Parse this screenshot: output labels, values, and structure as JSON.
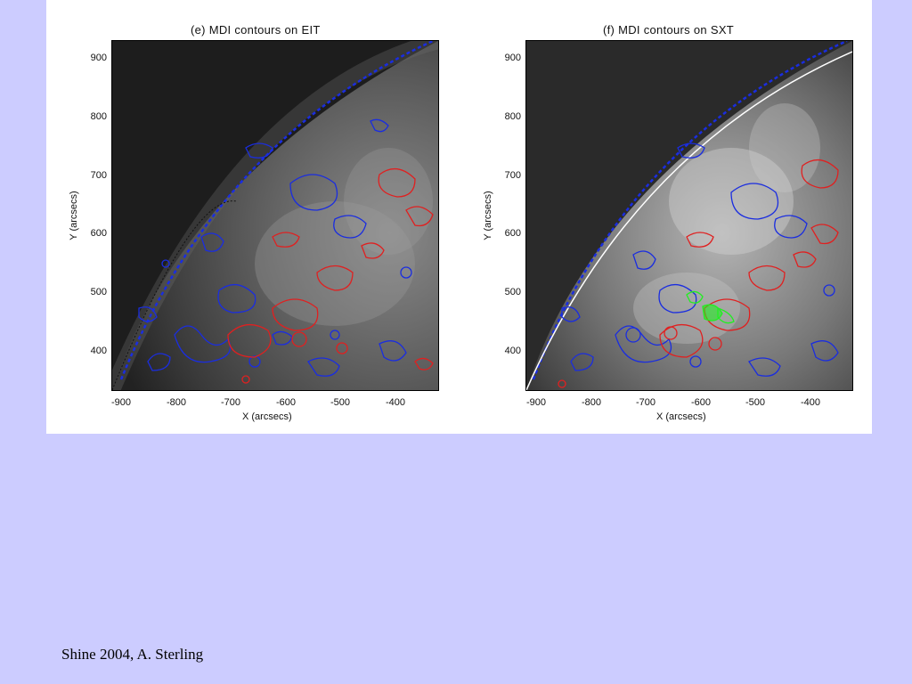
{
  "panels": [
    {
      "title": "(e) MDI contours on EIT",
      "xlabel": "X (arcsecs)",
      "ylabel": "Y (arcsecs)",
      "xticks": [
        "-900",
        "-800",
        "-700",
        "-600",
        "-500",
        "-400"
      ],
      "yticks": [
        "900",
        "800",
        "700",
        "600",
        "500",
        "400"
      ]
    },
    {
      "title": "(f) MDI contours on SXT",
      "xlabel": "X (arcsecs)",
      "ylabel": "Y (arcsecs)",
      "xticks": [
        "-900",
        "-800",
        "-700",
        "-600",
        "-500",
        "-400"
      ],
      "yticks": [
        "900",
        "800",
        "700",
        "600",
        "500",
        "400"
      ]
    }
  ],
  "colors": {
    "positive_contours": "#e02020",
    "negative_contours": "#1a2de0",
    "sxt_contours": "#22ee22",
    "background": "#ccccff"
  },
  "caption": "Shine 2004, A. Sterling"
}
